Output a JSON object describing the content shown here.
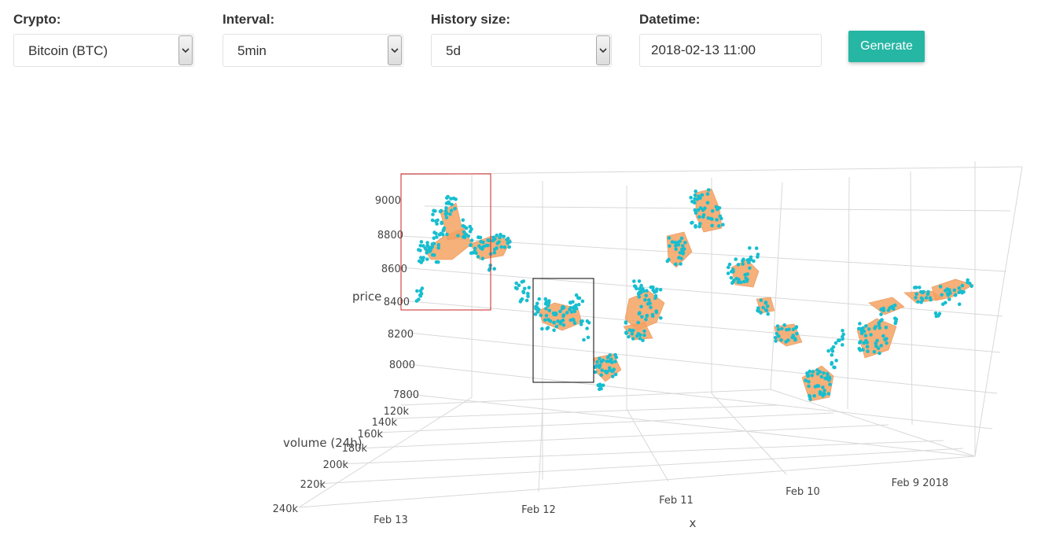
{
  "controls": {
    "crypto": {
      "label": "Crypto:",
      "value": "Bitcoin (BTC)"
    },
    "interval": {
      "label": "Interval:",
      "value": "5min"
    },
    "history": {
      "label": "History size:",
      "value": "5d"
    },
    "datetime": {
      "label": "Datetime:",
      "value": "2018-02-13 11:00"
    },
    "generate_label": "Generate"
  },
  "chart_data": {
    "type": "scatter",
    "axes": {
      "x": {
        "title": "x",
        "tick_labels": [
          "Feb 13",
          "Feb 12",
          "Feb 11",
          "Feb 10",
          "Feb 9 2018"
        ]
      },
      "y": {
        "title": "volume (24h)",
        "tick_labels": [
          "120k",
          "140k",
          "160k",
          "180k",
          "200k",
          "220k",
          "240k"
        ]
      },
      "z": {
        "title": "price",
        "tick_labels": [
          "9000",
          "8800",
          "8600",
          "8400",
          "8200",
          "8000",
          "7800"
        ]
      }
    },
    "colors": {
      "points": "#17becf",
      "surface": "#f4a261",
      "highlight_red": "#cc2222",
      "highlight_black": "#000000"
    }
  }
}
